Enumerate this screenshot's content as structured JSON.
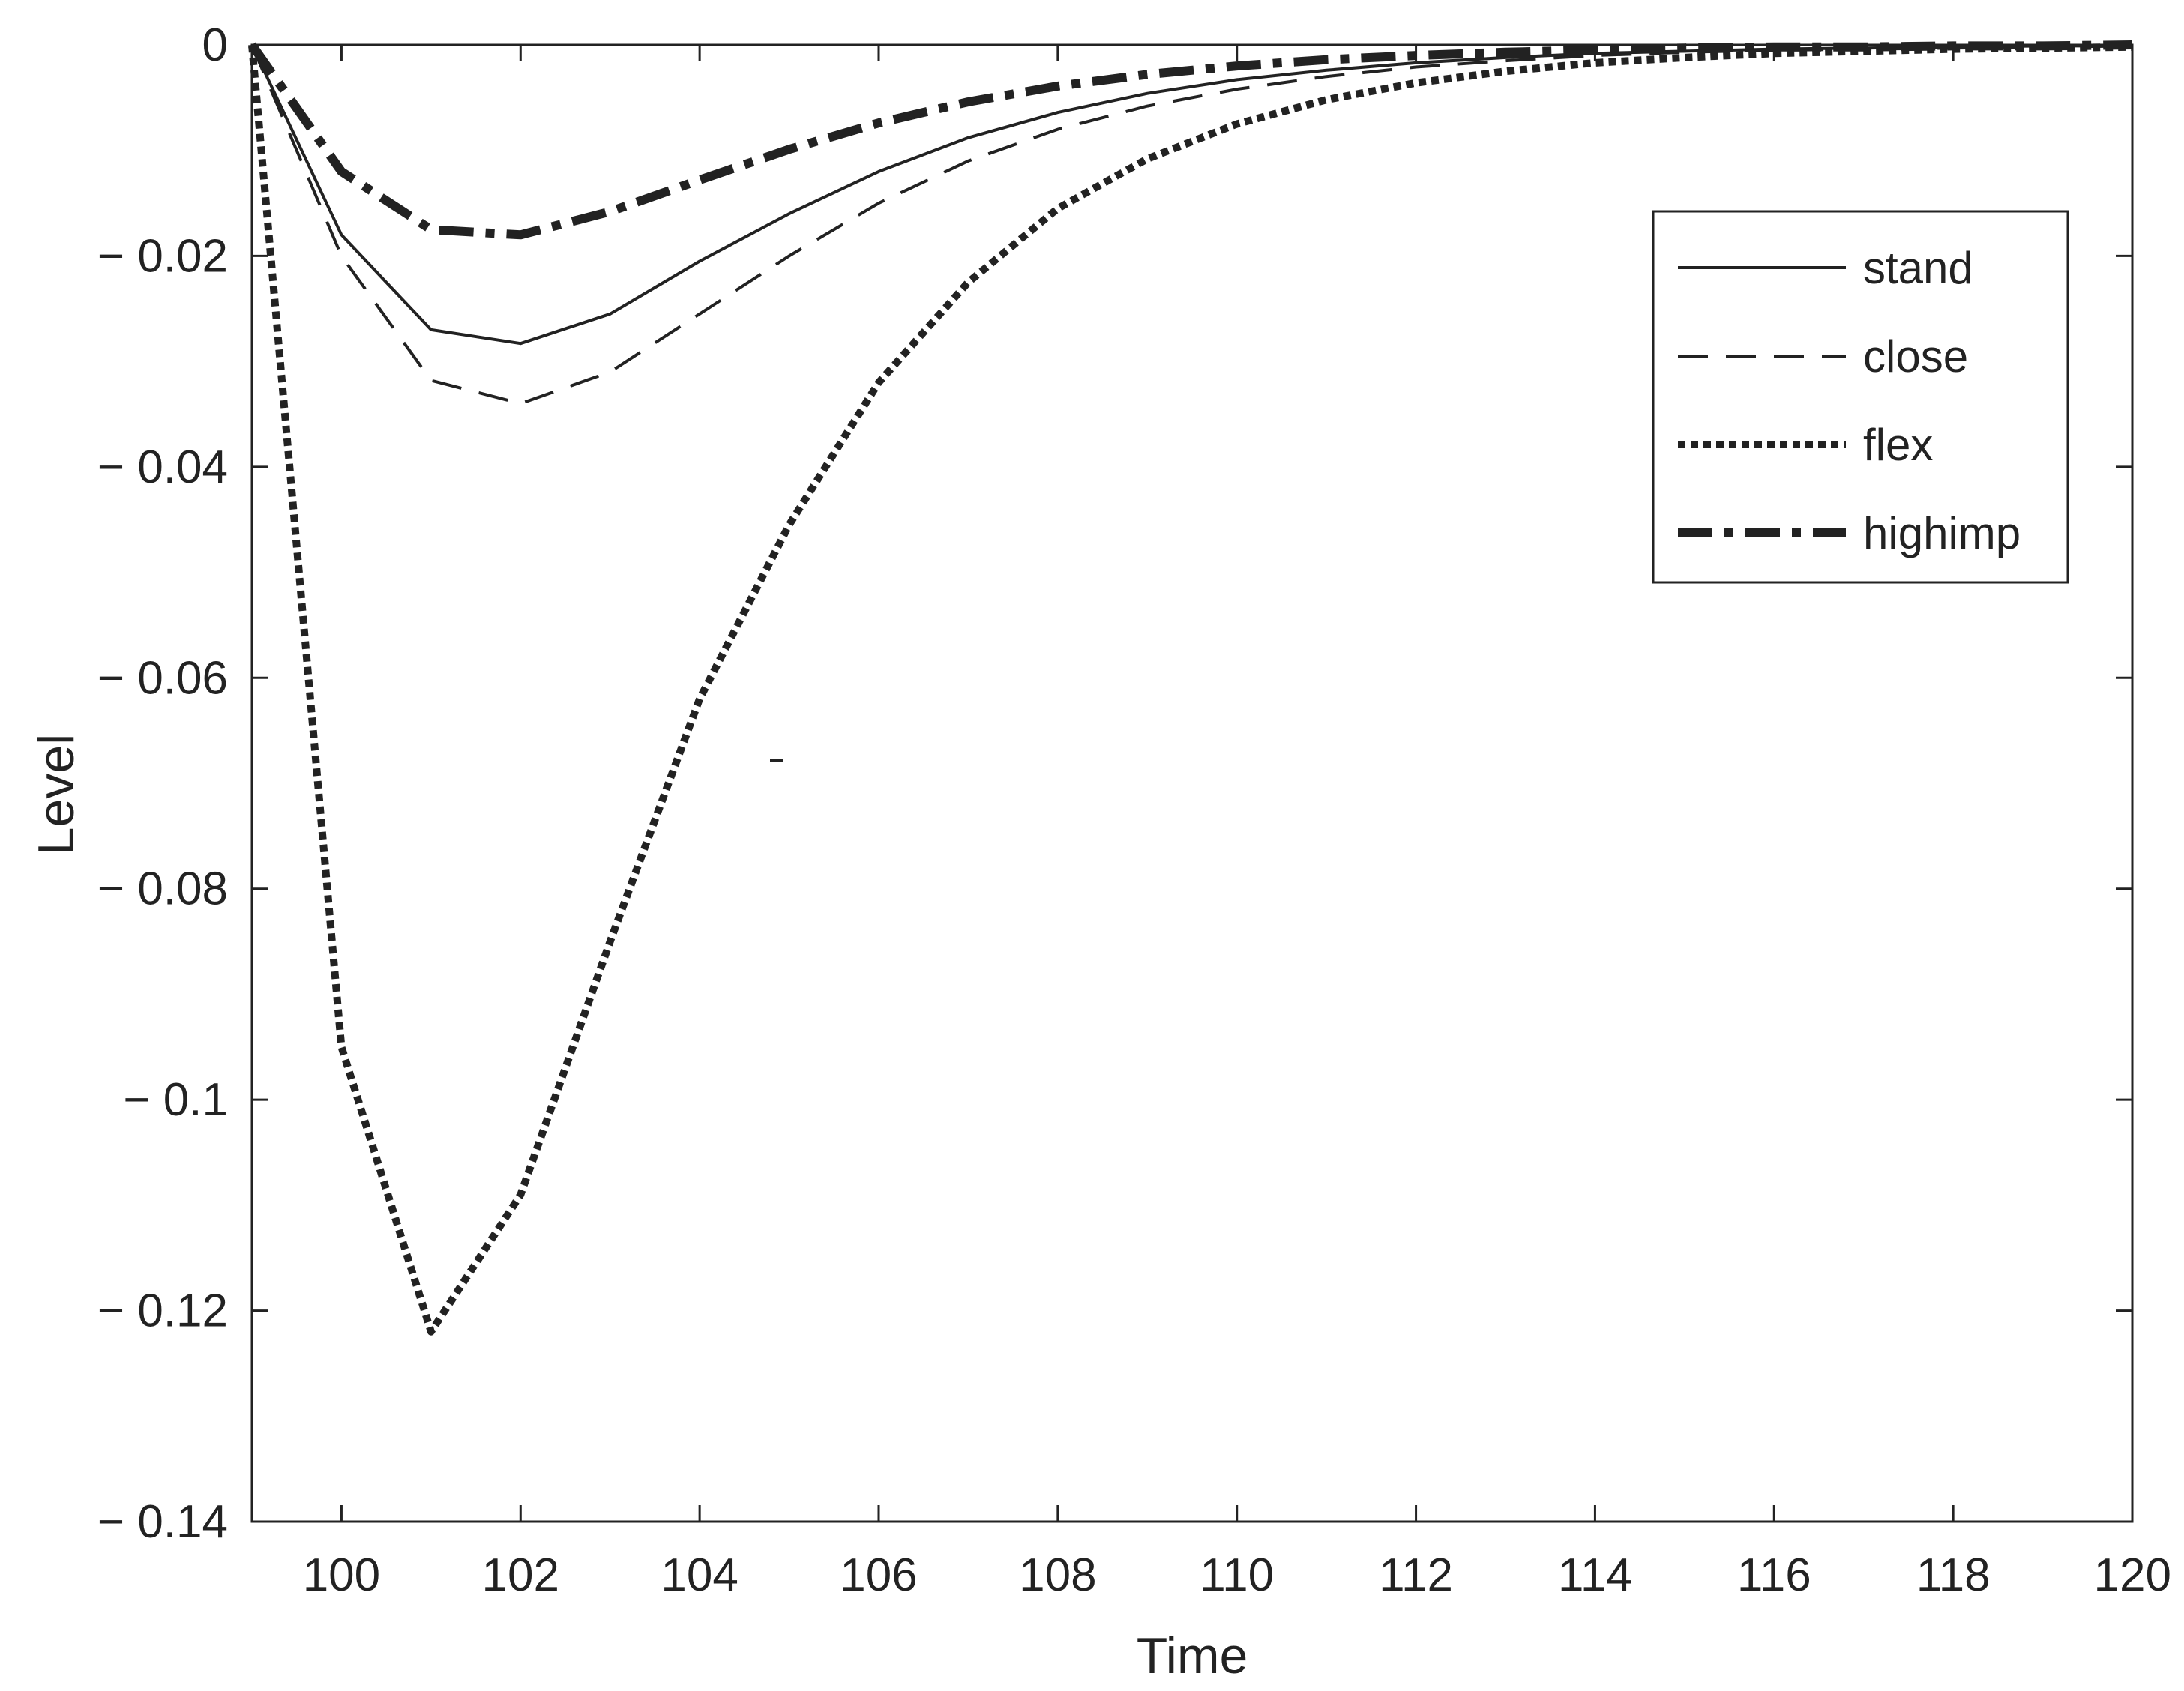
{
  "chart_data": {
    "type": "line",
    "title": "",
    "xlabel": "Time",
    "ylabel": "Level",
    "xlim": [
      99,
      120
    ],
    "ylim": [
      -0.14,
      0
    ],
    "xticks": [
      100,
      102,
      104,
      106,
      108,
      110,
      112,
      114,
      116,
      118,
      120
    ],
    "xtick_labels": [
      "100",
      "102",
      "104",
      "106",
      "108",
      "110",
      "112",
      "114",
      "116",
      "118",
      "120"
    ],
    "yticks": [
      0,
      -0.02,
      -0.04,
      -0.06,
      -0.08,
      -0.1,
      -0.12,
      -0.14
    ],
    "ytick_labels": [
      "0",
      "− 0.02",
      "− 0.04",
      "− 0.06",
      "− 0.08",
      "− 0.1",
      "− 0.12",
      "− 0.14"
    ],
    "grid": false,
    "legend_position": "top-right",
    "x": [
      99,
      100,
      101,
      102,
      103,
      104,
      105,
      106,
      107,
      108,
      109,
      110,
      111,
      112,
      113,
      114,
      115,
      116,
      117,
      118,
      119,
      120
    ],
    "series": [
      {
        "name": "stand",
        "style": "solid",
        "values": [
          0,
          -0.018,
          -0.027,
          -0.0283,
          -0.0255,
          -0.0205,
          -0.016,
          -0.012,
          -0.0088,
          -0.0064,
          -0.0046,
          -0.0033,
          -0.0024,
          -0.0017,
          -0.0012,
          -0.0008,
          -0.0006,
          -0.0004,
          -0.0003,
          -0.0002,
          -0.0001,
          -0.0001
        ]
      },
      {
        "name": "close",
        "style": "dashed",
        "values": [
          0,
          -0.02,
          -0.0318,
          -0.034,
          -0.031,
          -0.0255,
          -0.02,
          -0.015,
          -0.011,
          -0.008,
          -0.0058,
          -0.0042,
          -0.003,
          -0.0021,
          -0.0015,
          -0.001,
          -0.0007,
          -0.0005,
          -0.0004,
          -0.0003,
          -0.0002,
          -0.0001
        ]
      },
      {
        "name": "flex",
        "style": "dotted",
        "values": [
          0,
          -0.095,
          -0.122,
          -0.109,
          -0.085,
          -0.062,
          -0.0455,
          -0.032,
          -0.0225,
          -0.0155,
          -0.0108,
          -0.0075,
          -0.0052,
          -0.0036,
          -0.0025,
          -0.0017,
          -0.0012,
          -0.0008,
          -0.0006,
          -0.0004,
          -0.0003,
          -0.0002
        ]
      },
      {
        "name": "highimp",
        "style": "dash-dot",
        "values": [
          0,
          -0.012,
          -0.0175,
          -0.018,
          -0.0158,
          -0.0128,
          -0.0099,
          -0.0074,
          -0.0054,
          -0.0039,
          -0.0028,
          -0.002,
          -0.0014,
          -0.001,
          -0.0007,
          -0.0005,
          -0.0003,
          -0.0002,
          -0.0002,
          -0.0001,
          -0.0001,
          0
        ]
      }
    ]
  },
  "colors": {
    "line": "#222222",
    "axis": "#222222",
    "background": "#ffffff"
  }
}
